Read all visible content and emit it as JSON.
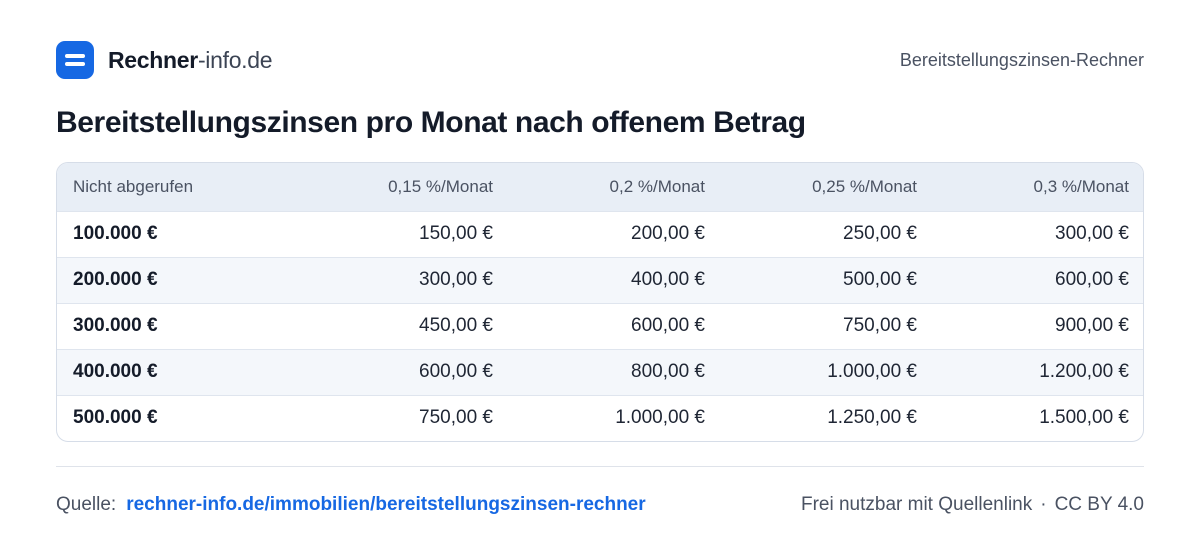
{
  "brand": {
    "name_bold": "Rechner",
    "name_light": "-info.de",
    "logo_icon": "equals-icon",
    "accent": "#1668e3"
  },
  "header": {
    "right_label": "Bereitstellungszinsen-Rechner"
  },
  "title": "Bereitstellungszinsen pro Monat nach offenem Betrag",
  "table": {
    "headers": [
      "Nicht abgerufen",
      "0,15 %/Monat",
      "0,2 %/Monat",
      "0,25 %/Monat",
      "0,3 %/Monat"
    ],
    "rows": [
      [
        "100.000 €",
        "150,00 €",
        "200,00 €",
        "250,00 €",
        "300,00 €"
      ],
      [
        "200.000 €",
        "300,00 €",
        "400,00 €",
        "500,00 €",
        "600,00 €"
      ],
      [
        "300.000 €",
        "450,00 €",
        "600,00 €",
        "750,00 €",
        "900,00 €"
      ],
      [
        "400.000 €",
        "600,00 €",
        "800,00 €",
        "1.000,00 €",
        "1.200,00 €"
      ],
      [
        "500.000 €",
        "750,00 €",
        "1.000,00 €",
        "1.250,00 €",
        "1.500,00 €"
      ]
    ]
  },
  "footer": {
    "source_label": "Quelle:",
    "source_link": "rechner-info.de/immobilien/bereitstellungszinsen-rechner",
    "usage": "Frei nutzbar mit Quellenlink",
    "separator": "·",
    "license": "CC BY 4.0"
  }
}
